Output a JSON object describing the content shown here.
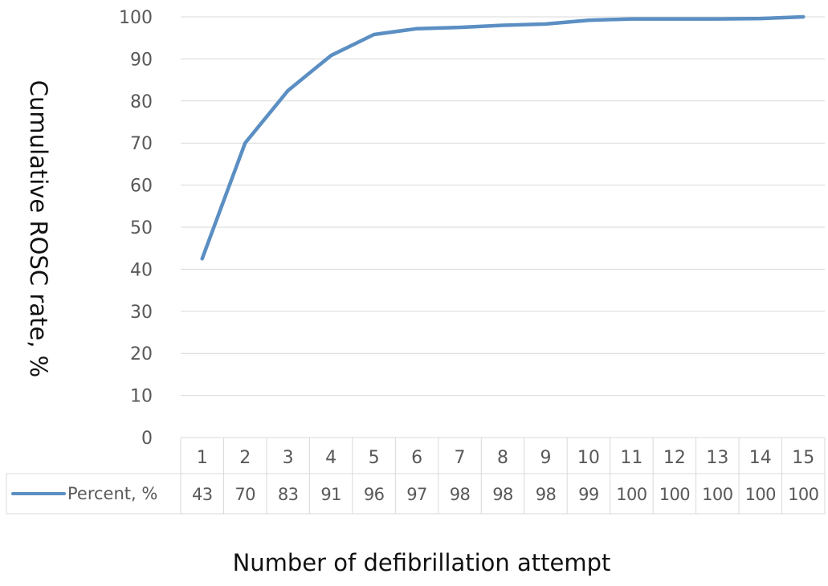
{
  "chart_data": {
    "type": "line",
    "categories": [
      "1",
      "2",
      "3",
      "4",
      "5",
      "6",
      "7",
      "8",
      "9",
      "10",
      "11",
      "12",
      "13",
      "14",
      "15"
    ],
    "series": [
      {
        "name": "Percent, %",
        "values": [
          42.5,
          70,
          82.5,
          90.8,
          95.8,
          97.2,
          97.5,
          98,
          98.3,
          99.2,
          99.5,
          99.5,
          99.5,
          99.6,
          100
        ],
        "table_values": [
          "43",
          "70",
          "83",
          "91",
          "96",
          "97",
          "98",
          "98",
          "98",
          "99",
          "100",
          "100",
          "100",
          "100",
          "100"
        ]
      }
    ],
    "title": "",
    "xlabel": "Number of defibrillation attempt",
    "ylabel": "Cumulative ROSC rate, %",
    "ylim": [
      0,
      100
    ],
    "yticks": [
      0,
      10,
      20,
      30,
      40,
      50,
      60,
      70,
      80,
      90,
      100
    ],
    "grid": true,
    "data_table": true,
    "series_color": "#5B8FC3",
    "grid_color": "#d9d9d9",
    "text_color": "#595959"
  }
}
